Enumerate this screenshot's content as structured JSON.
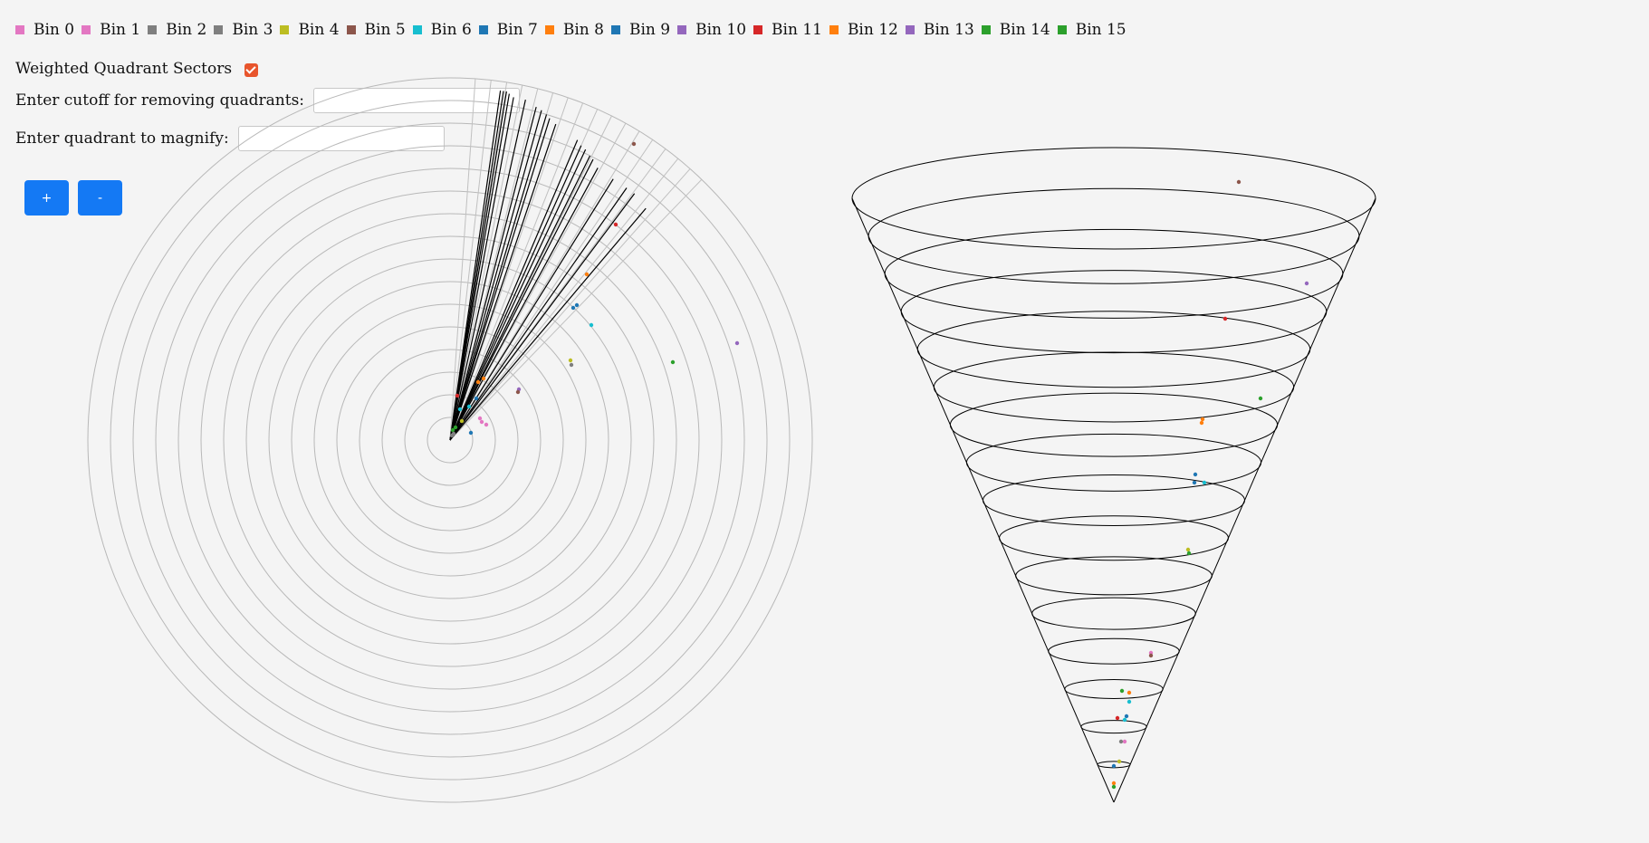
{
  "legend": [
    {
      "label": "Bin 0",
      "color": "#e377c2"
    },
    {
      "label": "Bin 1",
      "color": "#e377c2"
    },
    {
      "label": "Bin 2",
      "color": "#7f7f7f"
    },
    {
      "label": "Bin 3",
      "color": "#7f7f7f"
    },
    {
      "label": "Bin 4",
      "color": "#bcbd22"
    },
    {
      "label": "Bin 5",
      "color": "#8c564b"
    },
    {
      "label": "Bin 6",
      "color": "#17becf"
    },
    {
      "label": "Bin 7",
      "color": "#1f77b4"
    },
    {
      "label": "Bin 8",
      "color": "#ff7f0e"
    },
    {
      "label": "Bin 9",
      "color": "#1f77b4"
    },
    {
      "label": "Bin 10",
      "color": "#9467bd"
    },
    {
      "label": "Bin 11",
      "color": "#d62728"
    },
    {
      "label": "Bin 12",
      "color": "#ff7f0e"
    },
    {
      "label": "Bin 13",
      "color": "#9467bd"
    },
    {
      "label": "Bin 14",
      "color": "#2ca02c"
    },
    {
      "label": "Bin 15",
      "color": "#2ca02c"
    }
  ],
  "controls": {
    "weighted_label": "Weighted Quadrant Sectors",
    "weighted_checked": true,
    "cutoff_label": "Enter cutoff for removing quadrants:",
    "cutoff_value": "",
    "magnify_label": "Enter quadrant to magnify:",
    "magnify_value": "",
    "zoom_in_label": "+",
    "zoom_out_label": "-"
  },
  "colors": {
    "accent": "#1479f4",
    "checkbox": "#e8552c",
    "background": "#f4f4f4"
  }
}
